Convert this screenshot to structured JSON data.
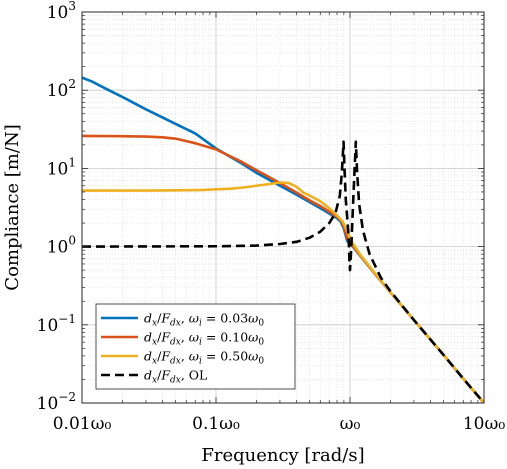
{
  "chart_data": {
    "type": "line",
    "xlabel": "Frequency [rad/s]",
    "ylabel": "Compliance [m/N]",
    "x_scale": "log",
    "y_scale": "log",
    "xlim": [
      0.01,
      10
    ],
    "ylim": [
      0.01,
      1000
    ],
    "x_ticks": [
      {
        "value": 0.01,
        "label": "0.01ω₀"
      },
      {
        "value": 0.1,
        "label": "0.1ω₀"
      },
      {
        "value": 1,
        "label": "ω₀"
      },
      {
        "value": 10,
        "label": "10ω₀"
      }
    ],
    "y_ticks": [
      {
        "value": 0.01,
        "base": "10",
        "exp": "−2"
      },
      {
        "value": 0.1,
        "base": "10",
        "exp": "−1"
      },
      {
        "value": 1,
        "base": "10",
        "exp": "0"
      },
      {
        "value": 10,
        "base": "10",
        "exp": "1"
      },
      {
        "value": 100,
        "base": "10",
        "exp": "2"
      },
      {
        "value": 1000,
        "base": "10",
        "exp": "3"
      }
    ],
    "grid": true,
    "legend_position": "bottom-left",
    "series": [
      {
        "name": "dx/Fdx, ωi = 0.03ω0",
        "color": "#0072BD",
        "dash": "solid",
        "points": [
          [
            0.01,
            145
          ],
          [
            0.012,
            128
          ],
          [
            0.015,
            105
          ],
          [
            0.02,
            82
          ],
          [
            0.03,
            57
          ],
          [
            0.05,
            37
          ],
          [
            0.07,
            28
          ],
          [
            0.1,
            18
          ],
          [
            0.15,
            12
          ],
          [
            0.2,
            8.8
          ],
          [
            0.3,
            6
          ],
          [
            0.4,
            4.6
          ],
          [
            0.5,
            3.7
          ],
          [
            0.6,
            3.1
          ],
          [
            0.7,
            2.65
          ],
          [
            0.8,
            2.3
          ],
          [
            0.85,
            2.1
          ],
          [
            0.9,
            1.7
          ],
          [
            0.95,
            1.2
          ],
          [
            1.0,
            1.05
          ],
          [
            1.05,
            1.0
          ],
          [
            1.2,
            0.75
          ],
          [
            1.5,
            0.47
          ],
          [
            2,
            0.26
          ],
          [
            3,
            0.115
          ],
          [
            5,
            0.041
          ],
          [
            7,
            0.0205
          ],
          [
            10,
            0.01
          ]
        ]
      },
      {
        "name": "dx/Fdx, ωi = 0.10ω0",
        "color": "#D95319",
        "dash": "solid",
        "points": [
          [
            0.01,
            26
          ],
          [
            0.02,
            25.8
          ],
          [
            0.03,
            25.5
          ],
          [
            0.04,
            25
          ],
          [
            0.05,
            24
          ],
          [
            0.07,
            21
          ],
          [
            0.1,
            17.5
          ],
          [
            0.15,
            12.5
          ],
          [
            0.2,
            9.5
          ],
          [
            0.3,
            6.5
          ],
          [
            0.4,
            4.9
          ],
          [
            0.5,
            3.9
          ],
          [
            0.6,
            3.3
          ],
          [
            0.7,
            2.8
          ],
          [
            0.8,
            2.4
          ],
          [
            0.85,
            2.2
          ],
          [
            0.9,
            1.8
          ],
          [
            0.95,
            1.3
          ],
          [
            1.0,
            1.1
          ],
          [
            1.05,
            1.02
          ],
          [
            1.2,
            0.76
          ],
          [
            1.5,
            0.47
          ],
          [
            2,
            0.26
          ],
          [
            3,
            0.115
          ],
          [
            5,
            0.041
          ],
          [
            7,
            0.0205
          ],
          [
            10,
            0.01
          ]
        ]
      },
      {
        "name": "dx/Fdx, ωi = 0.50ω0",
        "color": "#EDB120",
        "dash": "solid",
        "points": [
          [
            0.01,
            5.2
          ],
          [
            0.03,
            5.2
          ],
          [
            0.05,
            5.25
          ],
          [
            0.08,
            5.3
          ],
          [
            0.1,
            5.4
          ],
          [
            0.13,
            5.5
          ],
          [
            0.16,
            5.7
          ],
          [
            0.2,
            6
          ],
          [
            0.25,
            6.3
          ],
          [
            0.3,
            6.6
          ],
          [
            0.35,
            6.5
          ],
          [
            0.4,
            5.8
          ],
          [
            0.45,
            4.9
          ],
          [
            0.5,
            4.5
          ],
          [
            0.6,
            3.8
          ],
          [
            0.7,
            3.1
          ],
          [
            0.8,
            2.5
          ],
          [
            0.88,
            2.1
          ],
          [
            0.95,
            1.6
          ],
          [
            1.0,
            1.3
          ],
          [
            1.05,
            1.1
          ],
          [
            1.2,
            0.78
          ],
          [
            1.5,
            0.48
          ],
          [
            2,
            0.26
          ],
          [
            3,
            0.115
          ],
          [
            5,
            0.041
          ],
          [
            7,
            0.0205
          ],
          [
            10,
            0.01
          ]
        ]
      },
      {
        "name": "dx/Fdx, OL",
        "color": "#000000",
        "dash": "dashed",
        "points": [
          [
            0.01,
            1
          ],
          [
            0.1,
            1.01
          ],
          [
            0.2,
            1.03
          ],
          [
            0.3,
            1.08
          ],
          [
            0.4,
            1.15
          ],
          [
            0.5,
            1.3
          ],
          [
            0.6,
            1.55
          ],
          [
            0.7,
            2
          ],
          [
            0.78,
            2.7
          ],
          [
            0.84,
            4.5
          ],
          [
            0.87,
            9
          ],
          [
            0.895,
            22
          ],
          [
            0.91,
            10
          ],
          [
            0.93,
            4
          ],
          [
            0.96,
            2
          ],
          [
            0.98,
            1.15
          ],
          [
            0.99,
            0.65
          ],
          [
            1.0,
            0.5
          ],
          [
            1.02,
            0.9
          ],
          [
            1.05,
            3
          ],
          [
            1.08,
            9
          ],
          [
            1.105,
            22
          ],
          [
            1.13,
            9
          ],
          [
            1.17,
            3.5
          ],
          [
            1.25,
            1.6
          ],
          [
            1.4,
            0.8
          ],
          [
            1.7,
            0.4
          ],
          [
            2,
            0.27
          ],
          [
            3,
            0.115
          ],
          [
            5,
            0.041
          ],
          [
            7,
            0.0205
          ],
          [
            10,
            0.01
          ]
        ]
      }
    ]
  }
}
